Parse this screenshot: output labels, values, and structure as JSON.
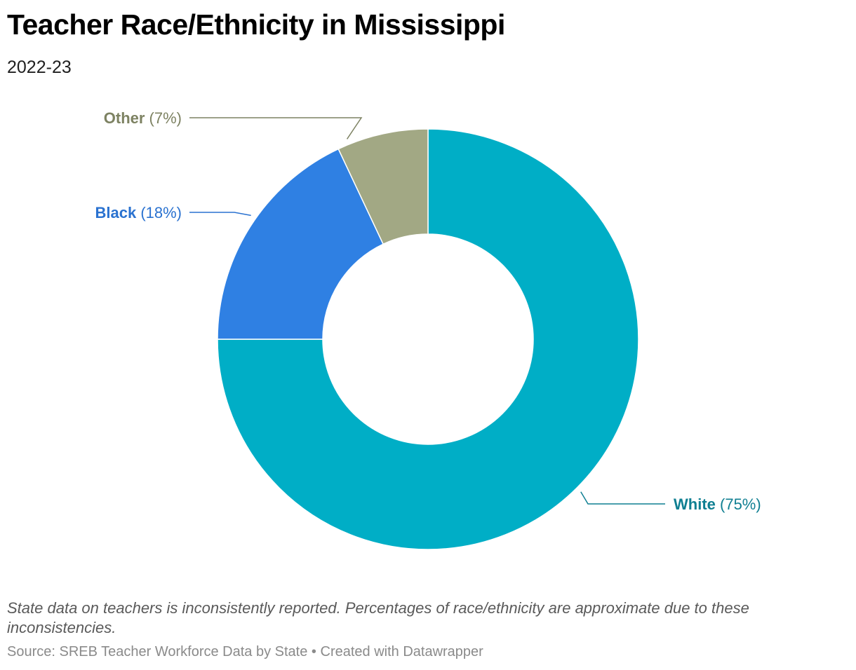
{
  "header": {
    "title": "Teacher Race/Ethnicity in Mississippi",
    "subtitle": "2022-23"
  },
  "chart_data": {
    "type": "pie",
    "donut": true,
    "categories": [
      "White",
      "Black",
      "Other"
    ],
    "values": [
      75,
      18,
      7
    ],
    "value_labels": [
      "(75%)",
      "(18%)",
      "(7%)"
    ],
    "colors": [
      "#00aec6",
      "#2f80e3",
      "#a2a884"
    ],
    "label_colors": [
      "#0f7f92",
      "#2a72d0",
      "#7d8262"
    ]
  },
  "footer": {
    "notes": "State data on teachers is inconsistently reported. Percentages of race/ethnicity are approximate due to these inconsistencies.",
    "source": "Source: SREB Teacher Workforce Data by State",
    "separator": "•",
    "credit": "Created with Datawrapper"
  }
}
